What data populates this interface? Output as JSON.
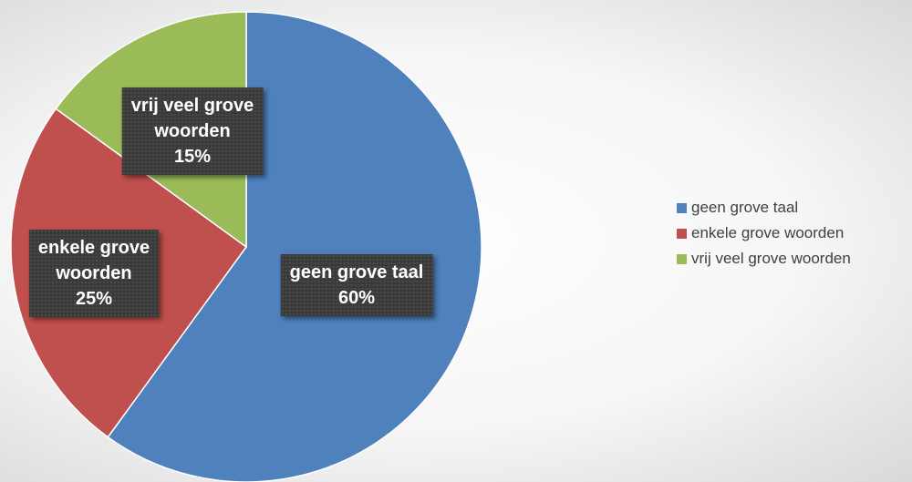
{
  "chart_data": {
    "type": "pie",
    "title": "",
    "categories": [
      "geen grove taal",
      "enkele grove woorden",
      "vrij veel grove woorden"
    ],
    "values": [
      60,
      25,
      15
    ],
    "value_labels": [
      "60%",
      "25%",
      "15%"
    ],
    "colors": [
      "#4f81bd",
      "#c0504d",
      "#9bbb59"
    ],
    "label_lines": [
      [
        "geen grove taal",
        "60%"
      ],
      [
        "enkele grove",
        "woorden",
        "25%"
      ],
      [
        "vrij veel grove",
        "woorden",
        "15%"
      ]
    ],
    "legend": {
      "position": "right",
      "entries": [
        "geen grove taal",
        "enkele grove woorden",
        "vrij veel grove woorden"
      ]
    }
  }
}
